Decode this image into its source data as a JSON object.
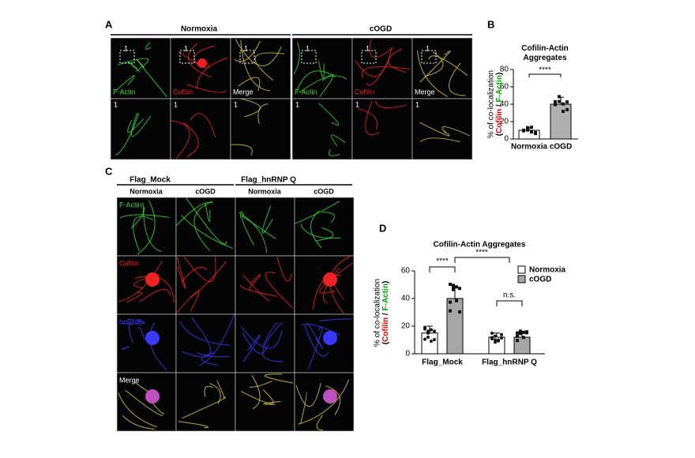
{
  "panel_a": {
    "label": "A",
    "conditions": [
      "Normoxia",
      "cOGD"
    ],
    "channels": [
      "F-Actin",
      "Cofilin",
      "Merge"
    ],
    "inset": "1"
  },
  "panel_b": {
    "label": "B"
  },
  "panel_c": {
    "label": "C",
    "constructs": [
      "Flag_Mock",
      "Flag_hnRNP Q"
    ],
    "conditions": [
      "Normoxia",
      "cOGD"
    ],
    "channels": [
      "F-Actin",
      "Cofilin",
      "hnRNP",
      "Merge"
    ]
  },
  "panel_d": {
    "label": "D"
  },
  "chart_data": [
    {
      "type": "bar",
      "title": "Cofilin-Actin Aggregates",
      "y_label": "% of co-localization",
      "y_label_sub": [
        "(",
        "Cofilin",
        " / ",
        "F-Actin",
        ")"
      ],
      "categories": [
        "Normoxia",
        "cOGD"
      ],
      "values": [
        10,
        40
      ],
      "errors": [
        3,
        8
      ],
      "colors": [
        "#ffffff",
        "#b0b0b0"
      ],
      "ylim": [
        0,
        80
      ],
      "yticks": [
        0,
        20,
        40,
        60,
        80
      ],
      "annotations": [
        "****"
      ]
    },
    {
      "type": "grouped-bar",
      "title": "Cofilin-Actin Aggregates",
      "y_label": "% of co-localization",
      "y_label_sub": [
        "(",
        "Cofilin",
        " / ",
        "F-Actin",
        ")"
      ],
      "categories": [
        "Flag_Mock",
        "Flag_hnRNP Q"
      ],
      "series": [
        {
          "name": "Normoxia",
          "color": "#ffffff",
          "values": [
            15,
            12
          ],
          "errors": [
            5,
            3
          ]
        },
        {
          "name": "cOGD",
          "color": "#a6a6a6",
          "values": [
            40,
            12
          ],
          "errors": [
            9,
            4
          ]
        }
      ],
      "ylim": [
        0,
        60
      ],
      "yticks": [
        0,
        20,
        40,
        60
      ],
      "legend": "top-right",
      "annotations": [
        "****",
        "****",
        "n.s."
      ]
    }
  ]
}
